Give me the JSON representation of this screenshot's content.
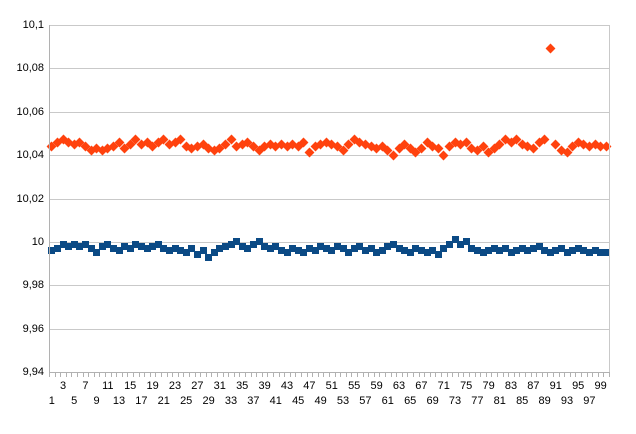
{
  "chart_data": {
    "type": "scatter",
    "title": "",
    "xlabel": "",
    "ylabel": "",
    "grid": true,
    "legend": "none",
    "decimal_separator": ",",
    "y_axis": {
      "min": 9.94,
      "max": 10.1,
      "step": 0.02,
      "tick_labels": [
        "10,1",
        "10,08",
        "10,06",
        "10,04",
        "10,02",
        "10",
        "9,98",
        "9,96",
        "9,94"
      ]
    },
    "x_axis": {
      "categories_count": 100,
      "upper_row_labels": [
        "3",
        "7",
        "11",
        "15",
        "19",
        "23",
        "27",
        "31",
        "35",
        "39",
        "43",
        "47",
        "51",
        "55",
        "59",
        "63",
        "67",
        "71",
        "75",
        "79",
        "83",
        "87",
        "91",
        "95",
        "99"
      ],
      "lower_row_labels": [
        "1",
        "5",
        "9",
        "13",
        "17",
        "21",
        "25",
        "29",
        "33",
        "37",
        "41",
        "45",
        "49",
        "53",
        "57",
        "61",
        "65",
        "69",
        "73",
        "77",
        "81",
        "85",
        "89",
        "93",
        "97"
      ]
    },
    "series": [
      {
        "id": "series-1",
        "marker": "square",
        "color": "#0b4a85",
        "values": [
          9.996,
          9.997,
          9.999,
          9.998,
          9.999,
          9.998,
          9.999,
          9.997,
          9.995,
          9.998,
          9.999,
          9.997,
          9.996,
          9.998,
          9.997,
          9.999,
          9.998,
          9.997,
          9.998,
          9.999,
          9.997,
          9.996,
          9.997,
          9.996,
          9.995,
          9.997,
          9.994,
          9.996,
          9.993,
          9.995,
          9.997,
          9.998,
          9.999,
          10.0,
          9.998,
          9.997,
          9.999,
          10.0,
          9.998,
          9.997,
          9.998,
          9.996,
          9.995,
          9.997,
          9.996,
          9.995,
          9.997,
          9.996,
          9.998,
          9.997,
          9.996,
          9.998,
          9.997,
          9.995,
          9.997,
          9.998,
          9.996,
          9.997,
          9.995,
          9.996,
          9.998,
          9.999,
          9.997,
          9.996,
          9.995,
          9.997,
          9.996,
          9.995,
          9.996,
          9.994,
          9.997,
          9.999,
          10.001,
          9.999,
          10.0,
          9.997,
          9.996,
          9.995,
          9.996,
          9.997,
          9.996,
          9.997,
          9.995,
          9.996,
          9.997,
          9.996,
          9.997,
          9.998,
          9.996,
          9.995,
          9.996,
          9.997,
          9.995,
          9.996,
          9.997,
          9.996,
          9.995,
          9.996,
          9.995,
          9.995
        ]
      },
      {
        "id": "series-2",
        "marker": "diamond",
        "color": "#ff420e",
        "values": [
          10.044,
          10.046,
          10.047,
          10.046,
          10.045,
          10.046,
          10.044,
          10.042,
          10.043,
          10.042,
          10.043,
          10.044,
          10.046,
          10.043,
          10.045,
          10.047,
          10.045,
          10.046,
          10.044,
          10.046,
          10.047,
          10.045,
          10.046,
          10.047,
          10.044,
          10.043,
          10.044,
          10.045,
          10.043,
          10.042,
          10.043,
          10.045,
          10.047,
          10.044,
          10.045,
          10.046,
          10.044,
          10.042,
          10.044,
          10.045,
          10.044,
          10.045,
          10.044,
          10.045,
          10.044,
          10.046,
          10.041,
          10.044,
          10.045,
          10.046,
          10.045,
          10.044,
          10.042,
          10.045,
          10.047,
          10.046,
          10.045,
          10.044,
          10.043,
          10.044,
          10.042,
          10.04,
          10.043,
          10.045,
          10.043,
          10.041,
          10.043,
          10.046,
          10.044,
          10.043,
          10.04,
          10.044,
          10.046,
          10.045,
          10.046,
          10.043,
          10.042,
          10.044,
          10.041,
          10.043,
          10.045,
          10.047,
          10.046,
          10.047,
          10.045,
          10.044,
          10.043,
          10.046,
          10.047,
          10.089,
          10.045,
          10.042,
          10.041,
          10.044,
          10.046,
          10.045,
          10.044,
          10.045,
          10.044,
          10.044
        ]
      }
    ],
    "colors": {
      "gridline": "#c9c9c9",
      "axis": "#b1b1b1",
      "text": "#000000",
      "background": "#ffffff"
    },
    "outlier": {
      "series": "series-2",
      "category": 90,
      "value": 10.089
    }
  }
}
